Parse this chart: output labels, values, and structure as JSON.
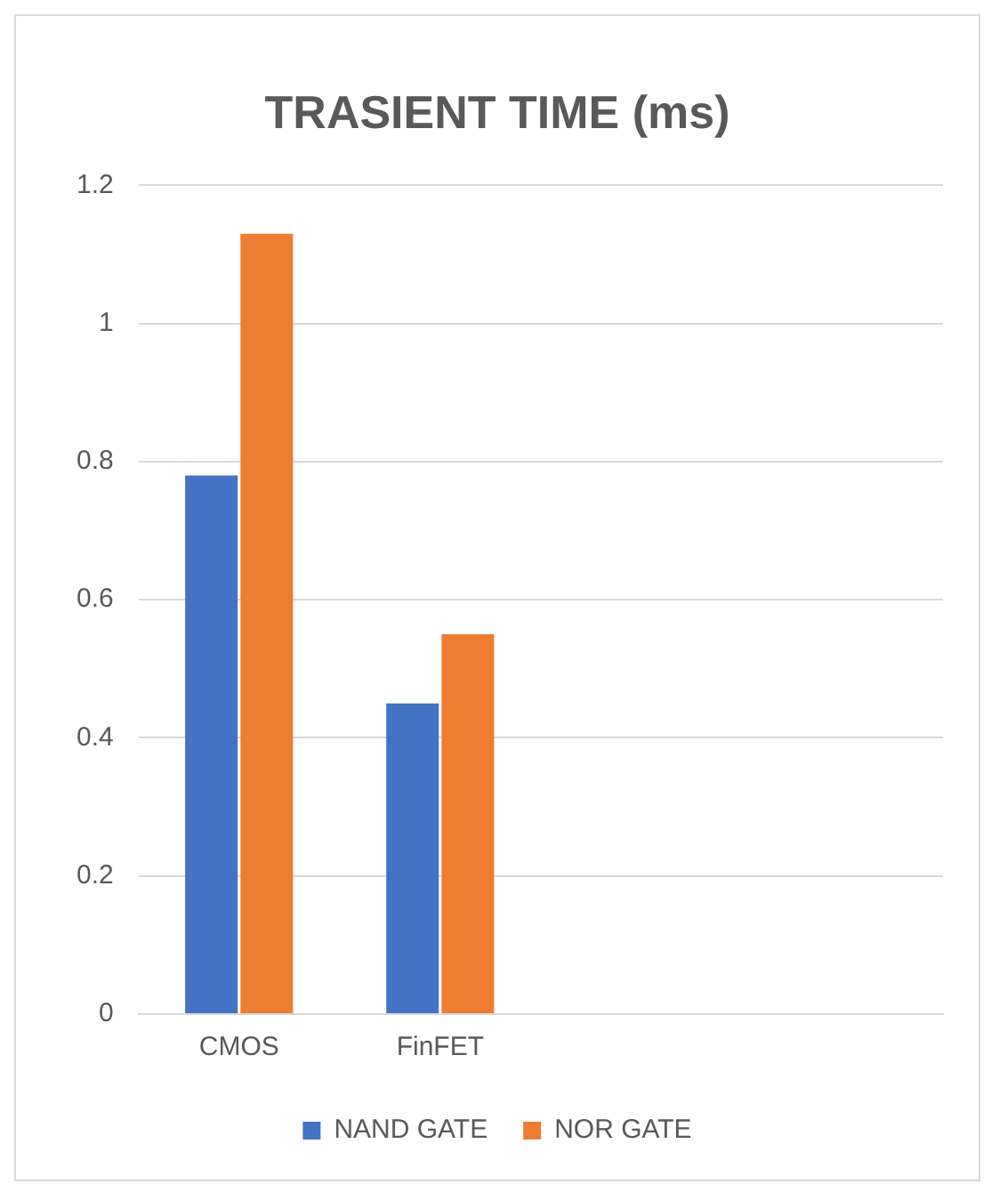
{
  "chart_data": {
    "type": "bar",
    "title": "TRASIENT TIME (ms)",
    "categories": [
      "CMOS",
      "FinFET",
      null,
      null
    ],
    "series": [
      {
        "name": "NAND GATE",
        "color": "#4472c4",
        "values": [
          0.78,
          0.45,
          null,
          null
        ]
      },
      {
        "name": "NOR GATE",
        "color": "#ed7d31",
        "values": [
          1.13,
          0.55,
          null,
          null
        ]
      }
    ],
    "ylim": [
      0,
      1.2
    ],
    "yticks": [
      0,
      0.2,
      0.4,
      0.6,
      0.8,
      1,
      1.2
    ],
    "grid": "y",
    "legend": "bottom"
  }
}
